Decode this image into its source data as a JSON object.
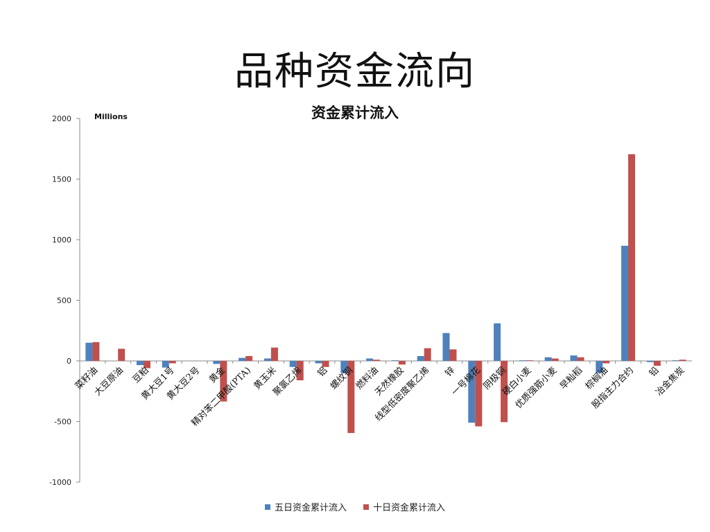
{
  "page": {
    "title": "品种资金流向"
  },
  "colors": {
    "five_day": "#4F81BD",
    "ten_day": "#C0504D",
    "axis": "#888888"
  },
  "chart_data": {
    "type": "bar",
    "title": "资金累计流入",
    "unit_label": "Millions",
    "xlabel": "",
    "ylabel": "",
    "ylim": [
      -1000,
      2000
    ],
    "yticks": [
      2000,
      1500,
      1000,
      500,
      0,
      -500,
      -1000
    ],
    "grid": false,
    "legend_position": "bottom",
    "categories": [
      "菜籽油",
      "大豆原油",
      "豆粕",
      "黄大豆1号",
      "黄大豆2号",
      "黄金",
      "精对苯二甲酸(PTA)",
      "黄玉米",
      "聚氯乙烯",
      "铝",
      "螺纹钢",
      "燃料油",
      "天然橡胶",
      "线型低密度聚乙烯",
      "锌",
      "一号棉花",
      "阴极铜",
      "硬白小麦",
      "优质强筋小麦",
      "早籼稻",
      "棕榈油",
      "股指主力合约",
      "铅",
      "冶金焦炭"
    ],
    "series": [
      {
        "name": "五日资金累计流入",
        "values": [
          150,
          0,
          -35,
          -55,
          0,
          -25,
          25,
          20,
          -50,
          -20,
          -100,
          20,
          5,
          40,
          230,
          -510,
          310,
          5,
          30,
          45,
          -100,
          950,
          -10,
          5
        ]
      },
      {
        "name": "十日资金累计流入",
        "values": [
          155,
          100,
          -60,
          -20,
          0,
          -335,
          40,
          110,
          -160,
          -50,
          -595,
          10,
          -30,
          105,
          95,
          -540,
          -505,
          5,
          20,
          30,
          -20,
          1705,
          -40,
          10
        ]
      }
    ]
  }
}
